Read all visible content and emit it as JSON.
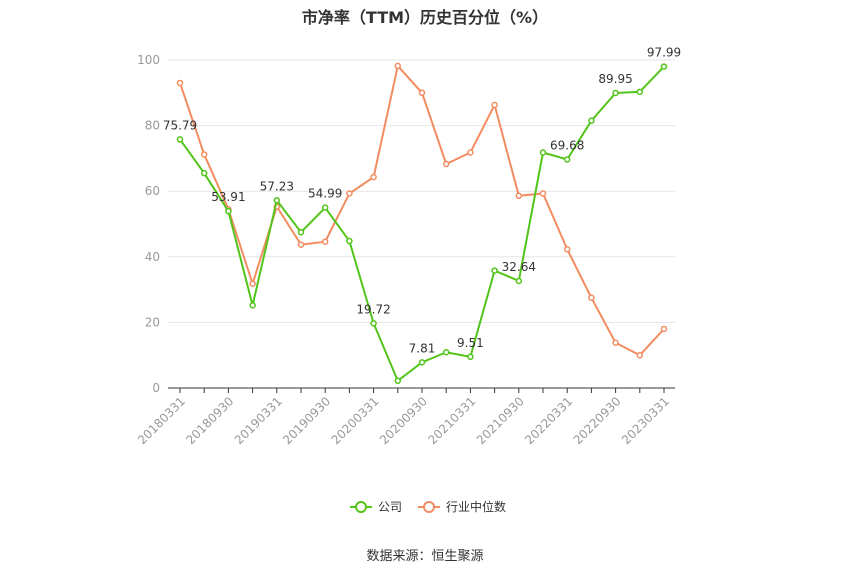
{
  "chart_data": {
    "type": "line",
    "title": "市净率（TTM）历史百分位（%）",
    "source": "数据来源：恒生聚源",
    "ylim": [
      0,
      100
    ],
    "yticks": [
      "0",
      "20",
      "40",
      "60",
      "80",
      "100"
    ],
    "xtick_labels": [
      "20180331",
      "20180930",
      "20190331",
      "20190930",
      "20200331",
      "20200930",
      "20210331",
      "20210930",
      "20220331",
      "20220930",
      "20230331"
    ],
    "x": [
      "20180331",
      "20180630",
      "20180930",
      "20181231",
      "20190331",
      "20190630",
      "20190930",
      "20191231",
      "20200331",
      "20200630",
      "20200930",
      "20201231",
      "20210331",
      "20210630",
      "20210930",
      "20211231",
      "20220331",
      "20220630",
      "20220930",
      "20221231",
      "20230331"
    ],
    "series": [
      {
        "name": "公司",
        "color": "#52c41a",
        "values": [
          75.79,
          65.5,
          53.91,
          25.2,
          57.23,
          47.5,
          54.99,
          44.8,
          19.72,
          2.2,
          7.81,
          10.9,
          9.51,
          35.8,
          32.64,
          71.8,
          69.68,
          81.5,
          89.95,
          90.3,
          97.99
        ],
        "labels": [
          "75.79",
          "",
          "53.91",
          "",
          "57.23",
          "",
          "54.99",
          "",
          "19.72",
          "",
          "7.81",
          "",
          "9.51",
          "",
          "32.64",
          "",
          "69.68",
          "",
          "89.95",
          "",
          "97.99"
        ]
      },
      {
        "name": "行业中位数",
        "color": "#f28c61",
        "values": [
          93.0,
          71.2,
          54.5,
          31.8,
          55.3,
          43.7,
          44.6,
          59.3,
          64.3,
          98.2,
          90.0,
          68.3,
          71.8,
          86.3,
          58.6,
          59.3,
          42.3,
          27.5,
          13.8,
          10.0,
          18.0
        ]
      }
    ],
    "legend_position": "bottom-center",
    "grid": true
  }
}
